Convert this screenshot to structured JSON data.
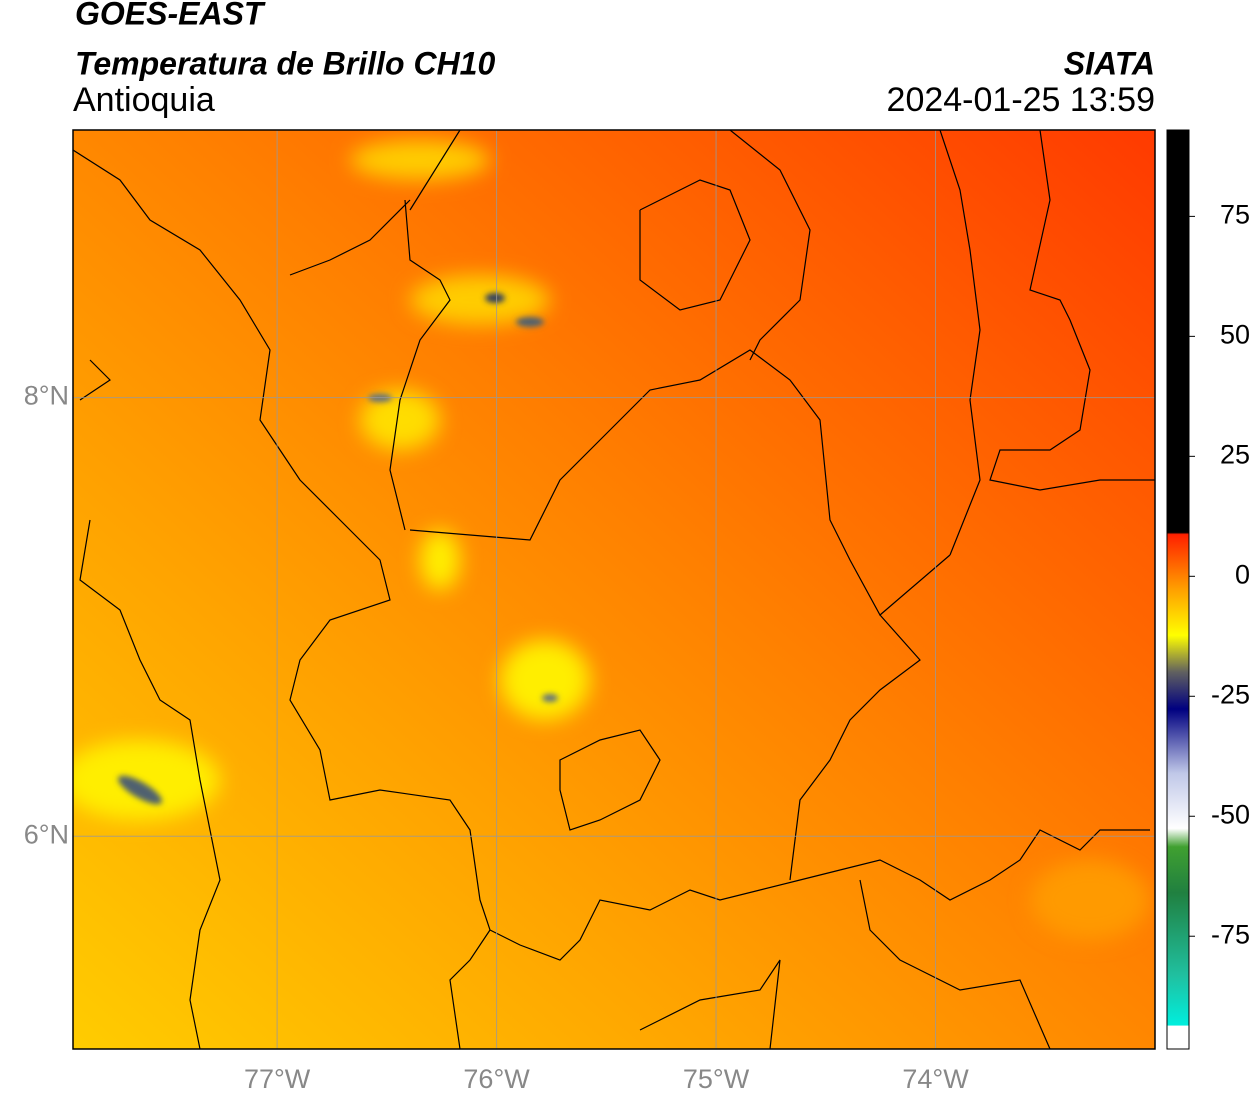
{
  "map": {
    "type": "map",
    "title": "GOES-EAST",
    "subtitle": "Temperatura de Brillo CH10",
    "source": "SIATA",
    "region": "Antioquia",
    "timestamp": "2024-01-25 13:59",
    "xlim": [
      -77.93,
      -73.0
    ],
    "ylim": [
      5.03,
      9.22
    ],
    "xticks": [
      {
        "value": -77,
        "label": "77°W"
      },
      {
        "value": -76,
        "label": "76°W"
      },
      {
        "value": -75,
        "label": "75°W"
      },
      {
        "value": -74,
        "label": "74°W"
      }
    ],
    "yticks": [
      {
        "value": 8,
        "label": "8°N"
      },
      {
        "value": 6,
        "label": "6°N"
      }
    ],
    "grid": true,
    "colorbar": {
      "lim": [
        -98.5,
        93
      ],
      "ticks": [
        75,
        50,
        25,
        0,
        -25,
        -50,
        -75
      ]
    }
  }
}
